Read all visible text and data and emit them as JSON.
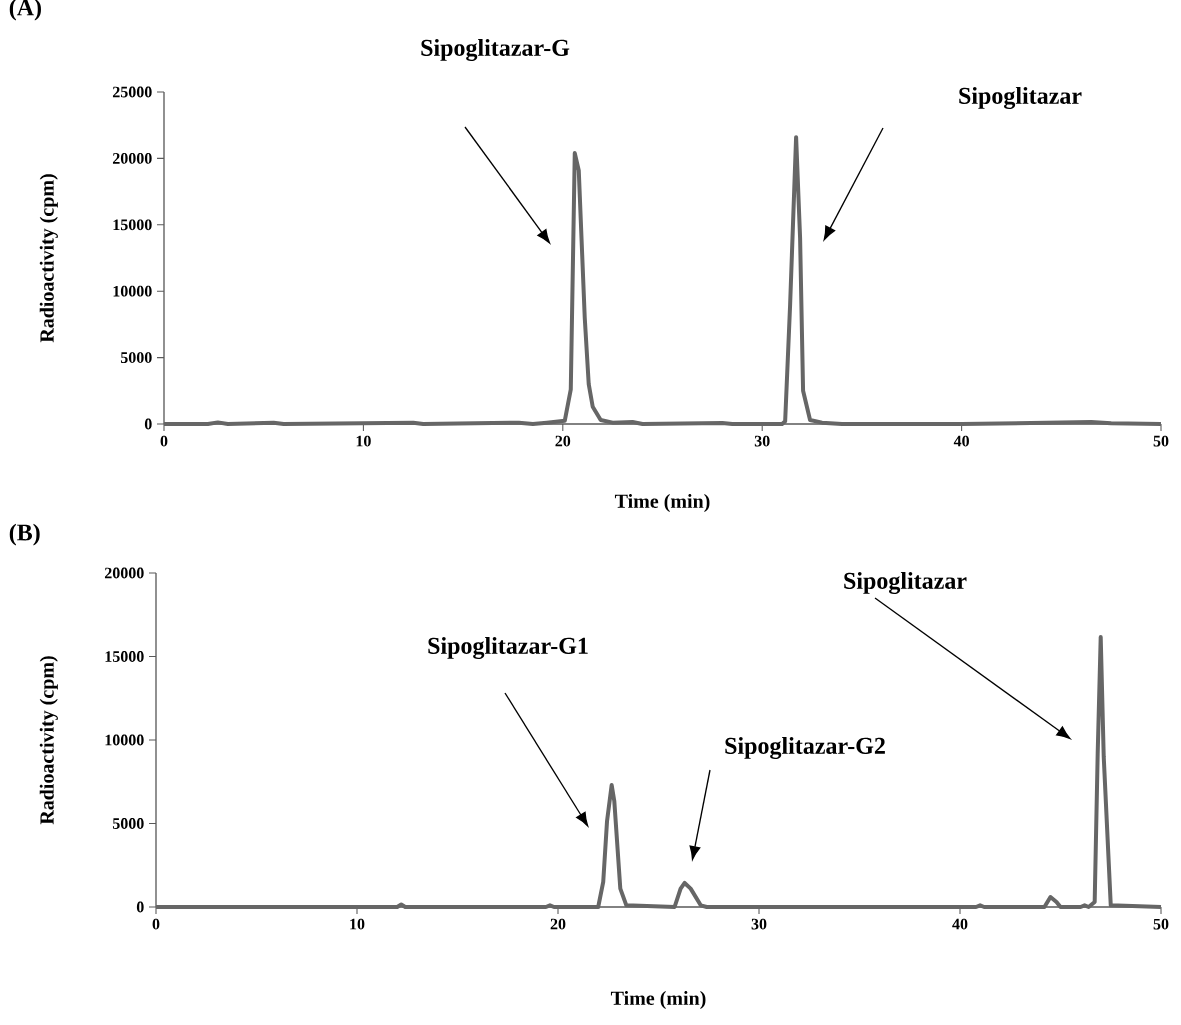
{
  "chart_data": [
    {
      "type": "line",
      "title": "(A)",
      "xlabel": "Time (min)",
      "ylabel": "Radioactivity (cpm)",
      "xlim": [
        0,
        50
      ],
      "xticks": [
        0,
        10,
        20,
        30,
        40,
        50
      ],
      "ylim": [
        0,
        25000
      ],
      "yticks": [
        0,
        5000,
        10000,
        15000,
        20000,
        25000
      ],
      "x": [
        0,
        2.2,
        2.7,
        3.2,
        5.5,
        6,
        12.5,
        13,
        17.8,
        18.5,
        19.2,
        19.8,
        20.1,
        20.4,
        20.6,
        20.8,
        21.1,
        21.3,
        21.5,
        21.9,
        22.5,
        23.5,
        24,
        28,
        28.5,
        31.0,
        31.15,
        31.4,
        31.7,
        31.9,
        32.05,
        32.4,
        33,
        34,
        40,
        46.5,
        47.5,
        50
      ],
      "series": [
        {
          "color": "#666666",
          "values": [
            0,
            0,
            120,
            0,
            100,
            0,
            100,
            0,
            100,
            0,
            100,
            200,
            250,
            2600,
            20400,
            19100,
            8000,
            3000,
            1300,
            300,
            100,
            150,
            0,
            80,
            0,
            0,
            200,
            9000,
            21600,
            14000,
            2500,
            300,
            100,
            0,
            0,
            150,
            50,
            0
          ]
        }
      ],
      "annotations": [
        "Sipoglitazar-G",
        "Sipoglitazar"
      ]
    },
    {
      "type": "line",
      "title": "(B)",
      "xlabel": "Time (min)",
      "ylabel": "Radioactivity (cpm)",
      "xlim": [
        0,
        50
      ],
      "xticks": [
        0,
        10,
        20,
        30,
        40,
        50
      ],
      "ylim": [
        0,
        20000
      ],
      "yticks": [
        0,
        5000,
        10000,
        15000,
        20000
      ],
      "x": [
        0,
        12,
        12.2,
        12.4,
        19.4,
        19.6,
        19.8,
        22.0,
        22.25,
        22.44,
        22.67,
        22.8,
        23.1,
        23.4,
        25.8,
        26.1,
        26.3,
        26.6,
        27.1,
        27.4,
        40.8,
        41,
        41.2,
        44.2,
        44.5,
        44.8,
        45.0,
        46,
        46.2,
        46.4,
        46.7,
        46.85,
        47.0,
        47.15,
        47.5,
        50
      ],
      "series": [
        {
          "color": "#666666",
          "values": [
            0,
            0,
            150,
            0,
            0,
            100,
            0,
            0,
            1500,
            5150,
            7300,
            6350,
            1100,
            100,
            0,
            1100,
            1440,
            1100,
            100,
            0,
            0,
            100,
            0,
            0,
            600,
            300,
            0,
            0,
            100,
            0,
            300,
            9200,
            16170,
            9000,
            100,
            0
          ]
        }
      ],
      "annotations": [
        "Sipoglitazar-G1",
        "Sipoglitazar-G2",
        "Sipoglitazar"
      ]
    }
  ]
}
